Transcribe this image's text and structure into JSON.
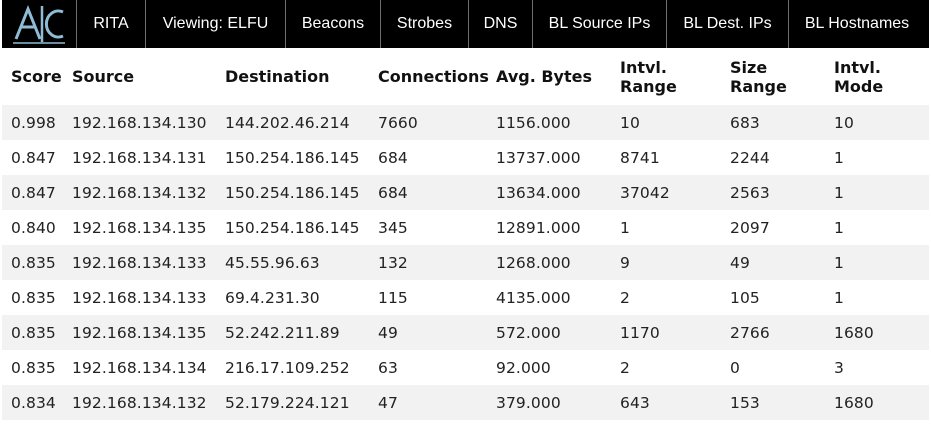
{
  "app": {
    "logo_text": "AC"
  },
  "nav": {
    "items": [
      {
        "label": "RITA"
      },
      {
        "label": "Viewing: ELFU"
      },
      {
        "label": "Beacons"
      },
      {
        "label": "Strobes"
      },
      {
        "label": "DNS"
      },
      {
        "label": "BL Source IPs"
      },
      {
        "label": "BL Dest. IPs"
      },
      {
        "label": "BL Hostnames"
      }
    ]
  },
  "table": {
    "headers": [
      "Score",
      "Source",
      "Destination",
      "Connections",
      "Avg. Bytes",
      "Intvl. Range",
      "Size Range",
      "Intvl. Mode"
    ],
    "rows": [
      [
        "0.998",
        "192.168.134.130",
        "144.202.46.214",
        "7660",
        "1156.000",
        "10",
        "683",
        "10"
      ],
      [
        "0.847",
        "192.168.134.131",
        "150.254.186.145",
        "684",
        "13737.000",
        "8741",
        "2244",
        "1"
      ],
      [
        "0.847",
        "192.168.134.132",
        "150.254.186.145",
        "684",
        "13634.000",
        "37042",
        "2563",
        "1"
      ],
      [
        "0.840",
        "192.168.134.135",
        "150.254.186.145",
        "345",
        "12891.000",
        "1",
        "2097",
        "1"
      ],
      [
        "0.835",
        "192.168.134.133",
        "45.55.96.63",
        "132",
        "1268.000",
        "9",
        "49",
        "1"
      ],
      [
        "0.835",
        "192.168.134.133",
        "69.4.231.30",
        "115",
        "4135.000",
        "2",
        "105",
        "1"
      ],
      [
        "0.835",
        "192.168.134.135",
        "52.242.211.89",
        "49",
        "572.000",
        "1170",
        "2766",
        "1680"
      ],
      [
        "0.835",
        "192.168.134.134",
        "216.17.109.252",
        "63",
        "92.000",
        "2",
        "0",
        "3"
      ],
      [
        "0.834",
        "192.168.134.132",
        "52.179.224.121",
        "47",
        "379.000",
        "643",
        "153",
        "1680"
      ]
    ]
  },
  "colors": {
    "nav_background": "#000000",
    "nav_text": "#ffffff",
    "logo_accent": "#8fbcd4",
    "row_stripe": "#f2f2f2"
  }
}
